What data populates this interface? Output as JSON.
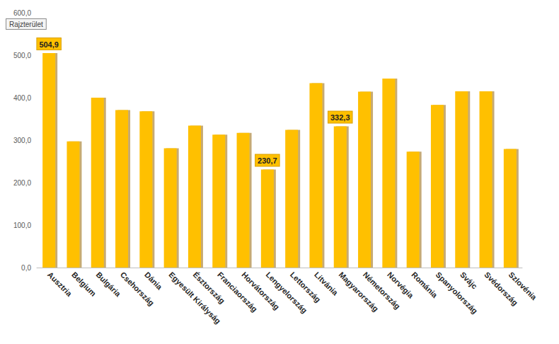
{
  "chart_data": {
    "type": "bar",
    "annotations": [
      "Rajzterület"
    ],
    "categories": [
      "Ausztria",
      "Belgium",
      "Bulgária",
      "Csehország",
      "Dánia",
      "Egyesült Királyság",
      "Észtország",
      "Franciaország",
      "Horvátország",
      "Lengyelország",
      "Lettország",
      "Litvánia",
      "Magyarország",
      "Németország",
      "Norvégia",
      "Románia",
      "Spanyolország",
      "Svájc",
      "Svédország",
      "Szlovénia"
    ],
    "values": [
      504.9,
      297,
      400,
      371,
      368,
      281,
      334,
      313,
      317,
      230.7,
      324,
      434,
      332.3,
      414,
      445,
      273,
      383,
      415,
      415,
      279
    ],
    "value_labels": [
      "504,9",
      null,
      null,
      null,
      null,
      null,
      null,
      null,
      null,
      "230,7",
      null,
      null,
      "332,3",
      null,
      null,
      null,
      null,
      null,
      null,
      null
    ],
    "color": "#FFC000",
    "ylim": [
      0,
      600
    ],
    "yticks": [
      {
        "value": 0,
        "label": "0,0"
      },
      {
        "value": 100,
        "label": "100,0"
      },
      {
        "value": 200,
        "label": "200,0"
      },
      {
        "value": 300,
        "label": "300,0"
      },
      {
        "value": 400,
        "label": "400,0"
      },
      {
        "value": 500,
        "label": "500,0"
      },
      {
        "value": 600,
        "label": "600,0"
      }
    ],
    "grid": false,
    "data_labels": true
  }
}
